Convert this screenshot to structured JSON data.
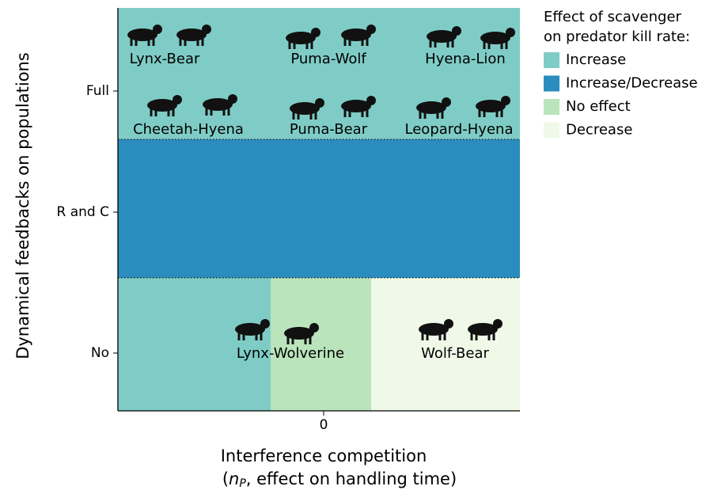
{
  "chart_data": {
    "type": "region",
    "y_label": "Dynamical feedbacks on populations",
    "x_label": "Interference competition",
    "x_label_parts": [
      "(",
      "n",
      "P",
      ", effect on handling time)"
    ],
    "xticks": [
      0
    ],
    "y_categories": [
      "No",
      "R and C",
      "Full"
    ],
    "legend": {
      "title": [
        "Effect of scavenger",
        "on predator kill rate:"
      ],
      "items": [
        {
          "label": "Increase",
          "color": "#7fccc6"
        },
        {
          "label": "Increase/Decrease",
          "color": "#2b8cbe"
        },
        {
          "label": "No effect",
          "color": "#bae4bc"
        },
        {
          "label": "Decrease",
          "color": "#f0f9e8"
        }
      ]
    },
    "rows": [
      {
        "category": "Full",
        "colors": [
          "#7fccc6"
        ],
        "pairs": [
          "Lynx-Bear",
          "Puma-Wolf",
          "Hyena-Lion",
          "Cheetah-Hyena",
          "Puma-Bear",
          "Leopard-Hyena"
        ]
      },
      {
        "category": "R and C",
        "colors": [
          "#2b8cbe"
        ],
        "pairs": []
      },
      {
        "category": "No",
        "colors": [
          "#7fccc6",
          "#bae4bc",
          "#f0f9e8"
        ],
        "pairs": [
          "Lynx-Wolverine",
          "Wolf-Bear"
        ]
      }
    ]
  }
}
